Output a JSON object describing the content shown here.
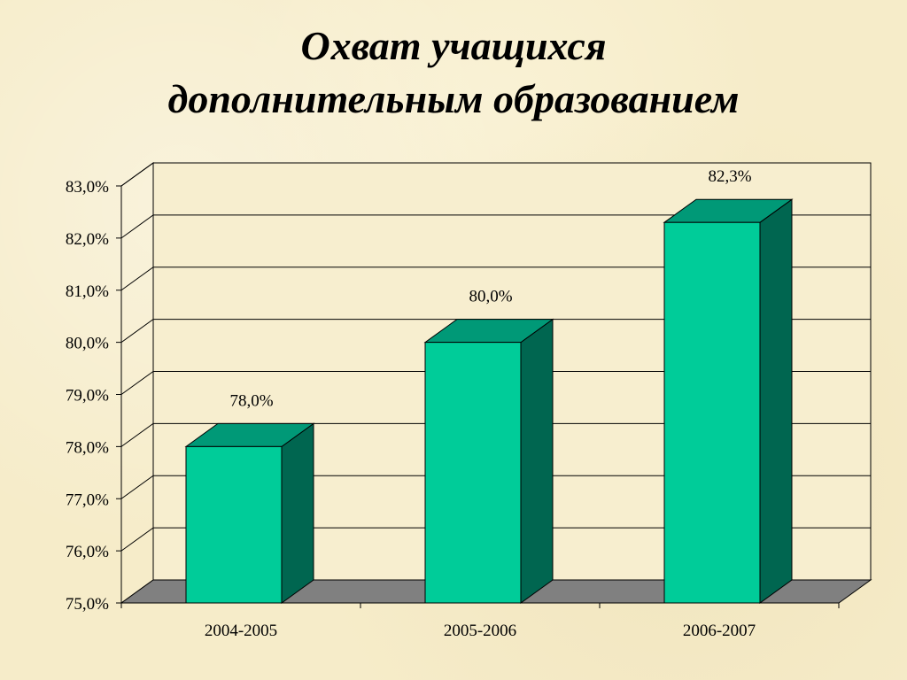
{
  "title_line1": "Охват учащихся",
  "title_line2": "дополнительным образованием",
  "chart_data": {
    "type": "bar",
    "categories": [
      "2004-2005",
      "2005-2006",
      "2006-2007"
    ],
    "values": [
      78.0,
      80.0,
      82.3
    ],
    "data_labels": [
      "78,0%",
      "80,0%",
      "82,3%"
    ],
    "ylim": [
      75.0,
      83.0
    ],
    "yticks": [
      "75,0%",
      "76,0%",
      "77,0%",
      "78,0%",
      "79,0%",
      "80,0%",
      "81,0%",
      "82,0%",
      "83,0%"
    ],
    "grid": true,
    "three_d": true,
    "colors": {
      "bar_front": "#00cc99",
      "bar_top": "#009977",
      "bar_side": "#006650",
      "floor": "#808080",
      "plot_back": "#f7eecf"
    }
  }
}
